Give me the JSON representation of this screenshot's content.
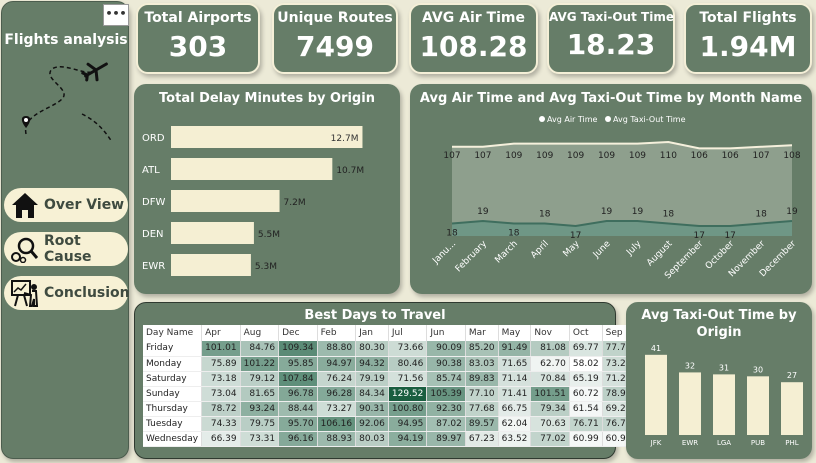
{
  "sidebar": {
    "title": "Flights analysis",
    "menu_dots": "•••",
    "nav": [
      {
        "label": "Over View",
        "icon": "home-icon"
      },
      {
        "label": "Root Cause",
        "icon": "magnifier-gears-icon"
      },
      {
        "label": "Conclusion",
        "icon": "presentation-icon"
      }
    ]
  },
  "kpis": [
    {
      "label": "Total Airports",
      "value": "303"
    },
    {
      "label": "Unique Routes",
      "value": "7499"
    },
    {
      "label": "AVG Air Time",
      "value": "108.28"
    },
    {
      "label": "AVG Taxi-Out Time",
      "value": "18.23"
    },
    {
      "label": "Total Flights",
      "value": "1.94M"
    }
  ],
  "delay_chart": {
    "title": "Total Delay Minutes by Origin"
  },
  "month_chart": {
    "title": "Avg Air Time and Avg Taxi-Out Time by Month Name"
  },
  "heat_table": {
    "title": "Best Days to Travel"
  },
  "taxi_chart": {
    "title": "Avg Taxi-Out Time by Origin"
  },
  "chart_data": [
    {
      "type": "bar",
      "orientation": "horizontal",
      "title": "Total Delay Minutes by Origin",
      "categories": [
        "ORD",
        "ATL",
        "DFW",
        "DEN",
        "EWR"
      ],
      "values": [
        12.7,
        10.7,
        7.2,
        5.5,
        5.3
      ],
      "value_labels": [
        "12.7M",
        "10.7M",
        "7.2M",
        "5.5M",
        "5.3M"
      ],
      "xlim": [
        0,
        13
      ],
      "color": "#f5efd3"
    },
    {
      "type": "line",
      "title": "Avg Air Time and Avg Taxi-Out Time by Month Name",
      "categories": [
        "January",
        "February",
        "March",
        "April",
        "May",
        "June",
        "July",
        "August",
        "September",
        "October",
        "November",
        "December"
      ],
      "category_labels": [
        "Janu...",
        "February",
        "March",
        "April",
        "May",
        "June",
        "July",
        "August",
        "September",
        "October",
        "November",
        "December"
      ],
      "series": [
        {
          "name": "Avg Air Time",
          "values": [
            107,
            107,
            109,
            109,
            109,
            109,
            109,
            110,
            106,
            106,
            107,
            108
          ],
          "color": "#f5f0dc"
        },
        {
          "name": "Avg Taxi-Out Time",
          "values": [
            18,
            19,
            18,
            18,
            17,
            19,
            19,
            18,
            17,
            17,
            18,
            19
          ],
          "color": "#3f6e5e"
        }
      ],
      "ylim": [
        0,
        120
      ],
      "legend": "top"
    },
    {
      "type": "table",
      "title": "Best Days to Travel",
      "columns": [
        "Day Name",
        "Apr",
        "Aug",
        "Dec",
        "Feb",
        "Jan",
        "Jul",
        "Jun",
        "Mar",
        "May",
        "Nov",
        "Oct",
        "Sep"
      ],
      "rows": [
        {
          "day": "Friday",
          "values": [
            101.01,
            84.76,
            109.34,
            88.8,
            80.3,
            73.66,
            90.09,
            85.2,
            91.49,
            81.08,
            69.77,
            77.71
          ]
        },
        {
          "day": "Monday",
          "values": [
            75.89,
            101.22,
            95.85,
            94.97,
            94.32,
            80.46,
            90.38,
            83.03,
            71.65,
            62.7,
            58.02,
            73.22
          ]
        },
        {
          "day": "Saturday",
          "values": [
            73.18,
            79.12,
            107.84,
            76.24,
            79.19,
            71.56,
            85.74,
            89.83,
            71.14,
            70.84,
            65.19,
            71.27
          ]
        },
        {
          "day": "Sunday",
          "values": [
            73.04,
            81.65,
            96.78,
            96.28,
            84.34,
            129.52,
            105.39,
            77.1,
            71.41,
            101.51,
            60.72,
            78.98
          ]
        },
        {
          "day": "Thursday",
          "values": [
            78.72,
            93.24,
            88.44,
            73.27,
            90.31,
            100.8,
            92.3,
            77.68,
            66.75,
            79.34,
            61.54,
            69.21
          ]
        },
        {
          "day": "Tuesday",
          "values": [
            74.33,
            79.75,
            95.7,
            106.16,
            92.06,
            94.95,
            87.02,
            89.57,
            62.04,
            70.63,
            76.71,
            76.71
          ]
        },
        {
          "day": "Wednesday",
          "values": [
            66.39,
            73.31,
            96.16,
            88.93,
            80.03,
            94.19,
            89.97,
            67.23,
            63.52,
            77.02,
            60.99,
            60.99
          ]
        }
      ]
    },
    {
      "type": "bar",
      "title": "Avg Taxi-Out Time by Origin",
      "categories": [
        "JFK",
        "EWR",
        "LGA",
        "PUB",
        "PHL"
      ],
      "values": [
        41,
        32,
        31,
        30,
        27
      ],
      "ylim": [
        0,
        45
      ],
      "color": "#f5efd3"
    }
  ]
}
